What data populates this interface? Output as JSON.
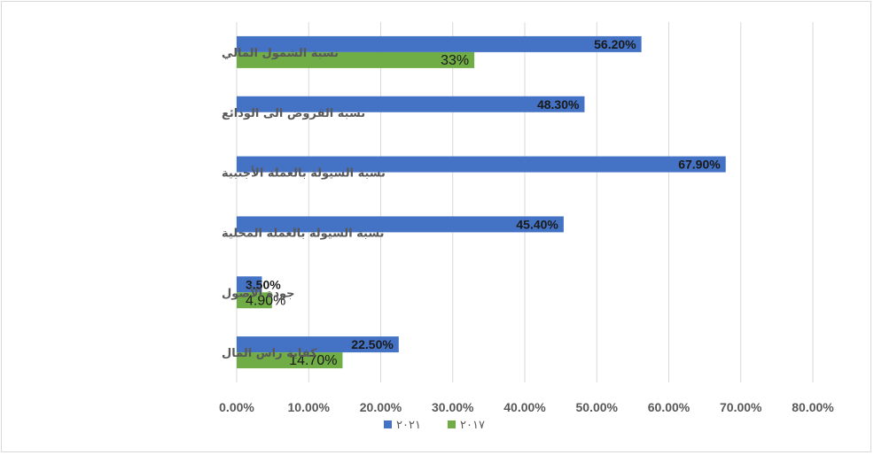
{
  "chart_data": {
    "type": "bar",
    "orientation": "horizontal",
    "categories": [
      "نسبة الشمول المالي",
      "نسبة القروض الى الودائع",
      "نسبة السيولة بالعملة الأجنبية",
      "نسبة السيولة بالعملة المحلية",
      "جودة الأصول",
      "كفاية راس المال"
    ],
    "series": [
      {
        "name": "٢٠٢١",
        "color": "#4472c4",
        "values": [
          56.2,
          48.3,
          67.9,
          45.4,
          3.5,
          22.5
        ],
        "labels": [
          "56.20%",
          "48.30%",
          "67.90%",
          "45.40%",
          "3.50%",
          "22.50%"
        ]
      },
      {
        "name": "٢٠١٧",
        "color": "#70ad47",
        "values": [
          33,
          null,
          null,
          null,
          4.9,
          14.7
        ],
        "labels": [
          "33%",
          null,
          null,
          null,
          "4.90%",
          "14.70%"
        ]
      }
    ],
    "xlim": [
      0,
      80
    ],
    "xticks": [
      "0.00%",
      "10.00%",
      "20.00%",
      "30.00%",
      "40.00%",
      "50.00%",
      "60.00%",
      "70.00%",
      "80.00%"
    ],
    "grid": true,
    "legend": "bottom"
  }
}
